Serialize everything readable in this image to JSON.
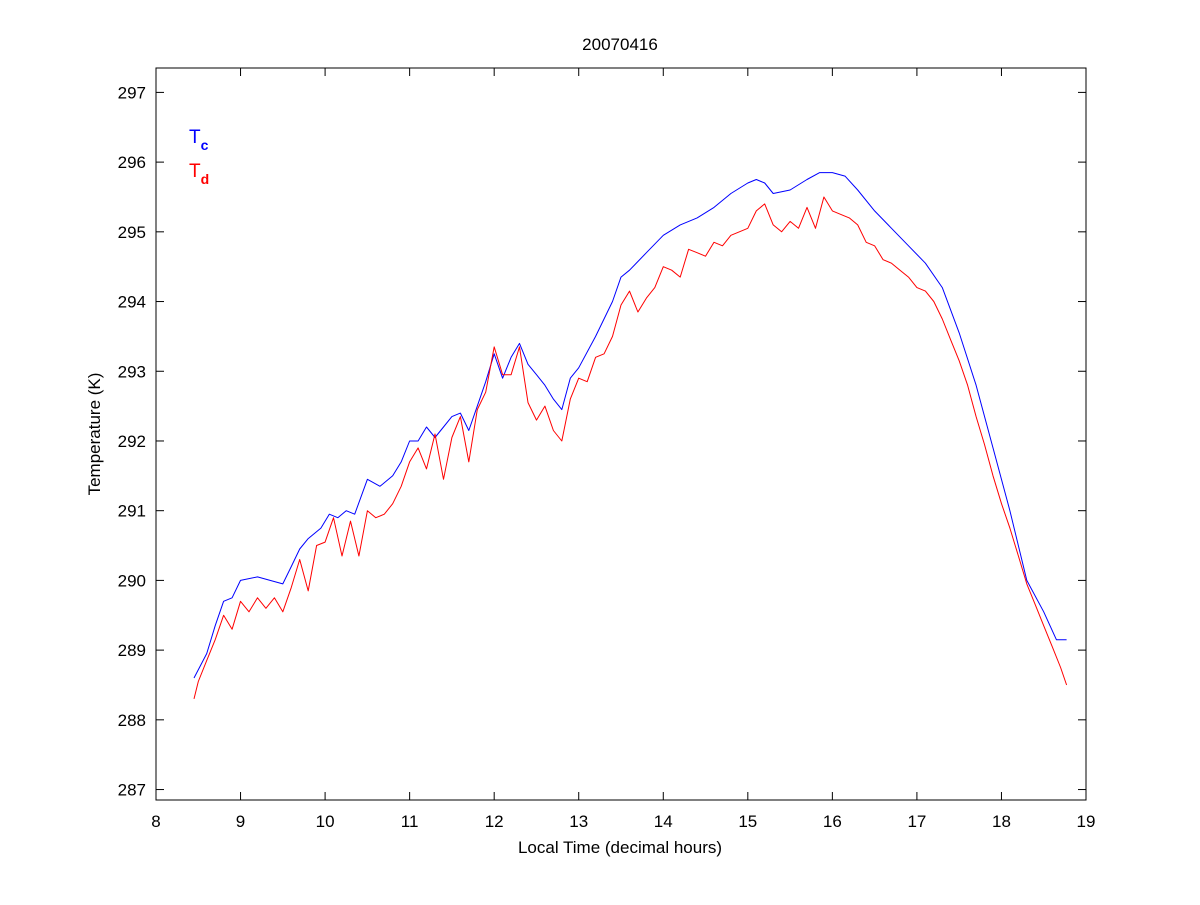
{
  "chart_data": {
    "type": "line",
    "title": "20070416",
    "xlabel": "Local Time (decimal hours)",
    "ylabel": "Temperature (K)",
    "xlim": [
      8,
      19
    ],
    "ylim": [
      286.85,
      297.35
    ],
    "xticks": [
      8,
      9,
      10,
      11,
      12,
      13,
      14,
      15,
      16,
      17,
      18,
      19
    ],
    "yticks": [
      287,
      288,
      289,
      290,
      291,
      292,
      293,
      294,
      295,
      296,
      297
    ],
    "grid": false,
    "legend": {
      "placement": "top-left",
      "entries": [
        {
          "main": "T",
          "sub": "c",
          "color": "#0000ff"
        },
        {
          "main": "T",
          "sub": "d",
          "color": "#ff0000"
        }
      ]
    },
    "series": [
      {
        "legend_main": "T",
        "legend_sub": "c",
        "color": "#0000ff",
        "x": [
          8.45,
          8.6,
          8.7,
          8.8,
          8.9,
          9.0,
          9.2,
          9.35,
          9.5,
          9.6,
          9.7,
          9.8,
          9.95,
          10.05,
          10.15,
          10.25,
          10.35,
          10.5,
          10.65,
          10.8,
          10.9,
          11.0,
          11.1,
          11.2,
          11.3,
          11.4,
          11.5,
          11.6,
          11.7,
          11.8,
          11.9,
          12.0,
          12.1,
          12.2,
          12.3,
          12.4,
          12.5,
          12.6,
          12.7,
          12.8,
          12.9,
          13.0,
          13.2,
          13.4,
          13.5,
          13.6,
          13.8,
          14.0,
          14.2,
          14.4,
          14.6,
          14.8,
          15.0,
          15.1,
          15.2,
          15.3,
          15.5,
          15.7,
          15.85,
          16.0,
          16.15,
          16.3,
          16.5,
          16.7,
          16.9,
          17.1,
          17.3,
          17.5,
          17.7,
          17.9,
          18.1,
          18.3,
          18.5,
          18.65,
          18.77
        ],
        "y": [
          288.6,
          288.95,
          289.35,
          289.7,
          289.75,
          290.0,
          290.05,
          290.0,
          289.95,
          290.2,
          290.45,
          290.6,
          290.75,
          290.95,
          290.9,
          291.0,
          290.95,
          291.45,
          291.35,
          291.5,
          291.7,
          292.0,
          292.0,
          292.2,
          292.05,
          292.2,
          292.35,
          292.4,
          292.15,
          292.5,
          292.85,
          293.25,
          292.9,
          293.2,
          293.4,
          293.1,
          292.95,
          292.8,
          292.6,
          292.45,
          292.9,
          293.05,
          293.5,
          294.0,
          294.35,
          294.45,
          294.7,
          294.95,
          295.1,
          295.2,
          295.35,
          295.55,
          295.7,
          295.75,
          295.7,
          295.55,
          295.6,
          295.75,
          295.85,
          295.85,
          295.8,
          295.6,
          295.3,
          295.05,
          294.8,
          294.55,
          294.2,
          293.55,
          292.8,
          291.9,
          291.0,
          290.0,
          289.55,
          289.15,
          289.15
        ]
      },
      {
        "legend_main": "T",
        "legend_sub": "d",
        "color": "#ff0000",
        "x": [
          8.45,
          8.5,
          8.6,
          8.7,
          8.8,
          8.9,
          9.0,
          9.1,
          9.2,
          9.3,
          9.4,
          9.5,
          9.6,
          9.7,
          9.8,
          9.9,
          10.0,
          10.1,
          10.2,
          10.3,
          10.4,
          10.5,
          10.6,
          10.7,
          10.8,
          10.9,
          11.0,
          11.1,
          11.2,
          11.3,
          11.4,
          11.5,
          11.6,
          11.7,
          11.8,
          11.9,
          12.0,
          12.1,
          12.2,
          12.3,
          12.4,
          12.5,
          12.6,
          12.7,
          12.8,
          12.9,
          13.0,
          13.1,
          13.2,
          13.3,
          13.4,
          13.5,
          13.6,
          13.7,
          13.8,
          13.9,
          14.0,
          14.1,
          14.2,
          14.3,
          14.4,
          14.5,
          14.6,
          14.7,
          14.8,
          14.9,
          15.0,
          15.1,
          15.2,
          15.3,
          15.4,
          15.5,
          15.6,
          15.7,
          15.8,
          15.9,
          16.0,
          16.1,
          16.2,
          16.3,
          16.4,
          16.5,
          16.6,
          16.7,
          16.8,
          16.9,
          17.0,
          17.1,
          17.2,
          17.3,
          17.4,
          17.5,
          17.6,
          17.7,
          17.8,
          17.9,
          18.0,
          18.1,
          18.2,
          18.3,
          18.4,
          18.5,
          18.6,
          18.7,
          18.77
        ],
        "y": [
          288.3,
          288.55,
          288.85,
          289.15,
          289.5,
          289.3,
          289.7,
          289.55,
          289.75,
          289.6,
          289.75,
          289.55,
          289.9,
          290.3,
          289.85,
          290.5,
          290.55,
          290.9,
          290.35,
          290.85,
          290.35,
          291.0,
          290.9,
          290.95,
          291.1,
          291.35,
          291.7,
          291.9,
          291.6,
          292.1,
          291.45,
          292.05,
          292.35,
          291.7,
          292.45,
          292.7,
          293.35,
          292.95,
          292.95,
          293.35,
          292.55,
          292.3,
          292.5,
          292.15,
          292.0,
          292.6,
          292.9,
          292.85,
          293.2,
          293.25,
          293.5,
          293.95,
          294.15,
          293.85,
          294.05,
          294.2,
          294.5,
          294.45,
          294.35,
          294.75,
          294.7,
          294.65,
          294.85,
          294.8,
          294.95,
          295.0,
          295.05,
          295.3,
          295.4,
          295.1,
          295.0,
          295.15,
          295.05,
          295.35,
          295.05,
          295.5,
          295.3,
          295.25,
          295.2,
          295.1,
          294.85,
          294.8,
          294.6,
          294.55,
          294.45,
          294.35,
          294.2,
          294.15,
          294.0,
          293.75,
          293.45,
          293.15,
          292.8,
          292.35,
          291.95,
          291.5,
          291.1,
          290.75,
          290.35,
          289.95,
          289.65,
          289.35,
          289.05,
          288.75,
          288.5
        ]
      }
    ]
  }
}
